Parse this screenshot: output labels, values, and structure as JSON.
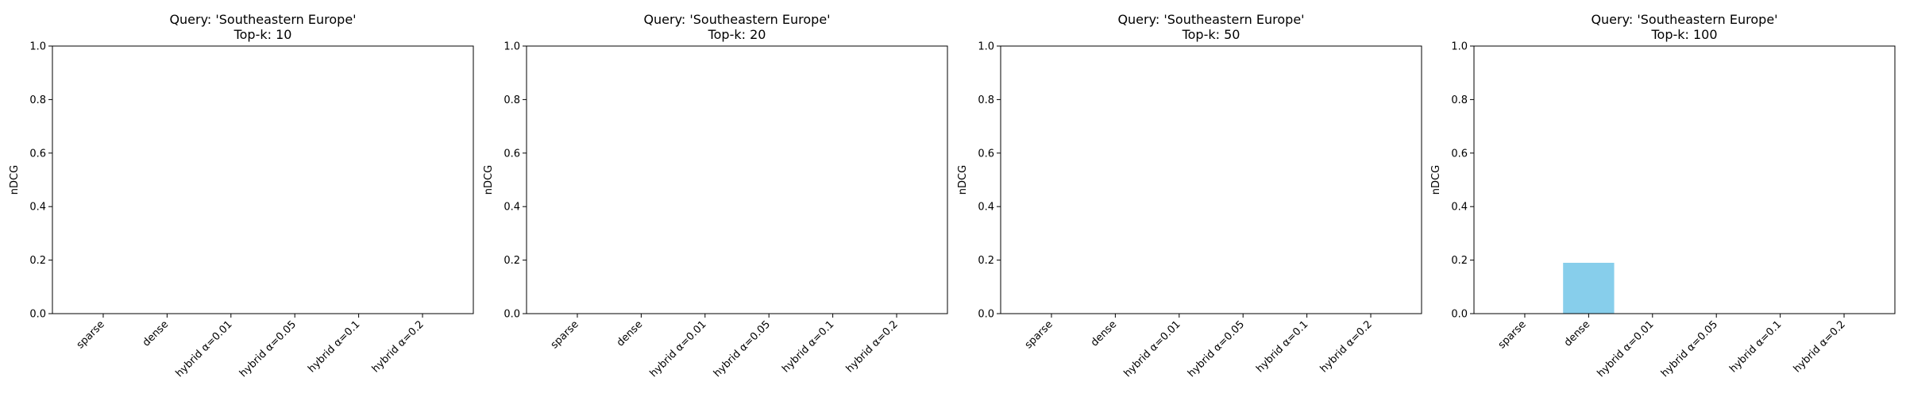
{
  "chart_data": [
    {
      "type": "bar",
      "title": "Query: 'Southeastern Europe'\nTop-k: 10",
      "xlabel": "",
      "ylabel": "nDCG",
      "ylim": [
        0,
        1.0
      ],
      "yticks": [
        "0.0",
        "0.2",
        "0.4",
        "0.6",
        "0.8",
        "1.0"
      ],
      "categories": [
        "sparse",
        "dense",
        "hybrid α=0.01",
        "hybrid α=0.05",
        "hybrid α=0.1",
        "hybrid α=0.2"
      ],
      "values": [
        0,
        0,
        0,
        0,
        0,
        0
      ],
      "bar_color": "#87ceeb",
      "grid": false
    },
    {
      "type": "bar",
      "title": "Query: 'Southeastern Europe'\nTop-k: 20",
      "xlabel": "",
      "ylabel": "nDCG",
      "ylim": [
        0,
        1.0
      ],
      "yticks": [
        "0.0",
        "0.2",
        "0.4",
        "0.6",
        "0.8",
        "1.0"
      ],
      "categories": [
        "sparse",
        "dense",
        "hybrid α=0.01",
        "hybrid α=0.05",
        "hybrid α=0.1",
        "hybrid α=0.2"
      ],
      "values": [
        0,
        0,
        0,
        0,
        0,
        0
      ],
      "bar_color": "#87ceeb",
      "grid": false
    },
    {
      "type": "bar",
      "title": "Query: 'Southeastern Europe'\nTop-k: 50",
      "xlabel": "",
      "ylabel": "nDCG",
      "ylim": [
        0,
        1.0
      ],
      "yticks": [
        "0.0",
        "0.2",
        "0.4",
        "0.6",
        "0.8",
        "1.0"
      ],
      "categories": [
        "sparse",
        "dense",
        "hybrid α=0.01",
        "hybrid α=0.05",
        "hybrid α=0.1",
        "hybrid α=0.2"
      ],
      "values": [
        0,
        0,
        0,
        0,
        0,
        0
      ],
      "bar_color": "#87ceeb",
      "grid": false
    },
    {
      "type": "bar",
      "title": "Query: 'Southeastern Europe'\nTop-k: 100",
      "xlabel": "",
      "ylabel": "nDCG",
      "ylim": [
        0,
        1.0
      ],
      "yticks": [
        "0.0",
        "0.2",
        "0.4",
        "0.6",
        "0.8",
        "1.0"
      ],
      "categories": [
        "sparse",
        "dense",
        "hybrid α=0.01",
        "hybrid α=0.05",
        "hybrid α=0.1",
        "hybrid α=0.2"
      ],
      "values": [
        0,
        0.19,
        0,
        0,
        0,
        0
      ],
      "bar_color": "#87ceeb",
      "grid": false
    }
  ]
}
